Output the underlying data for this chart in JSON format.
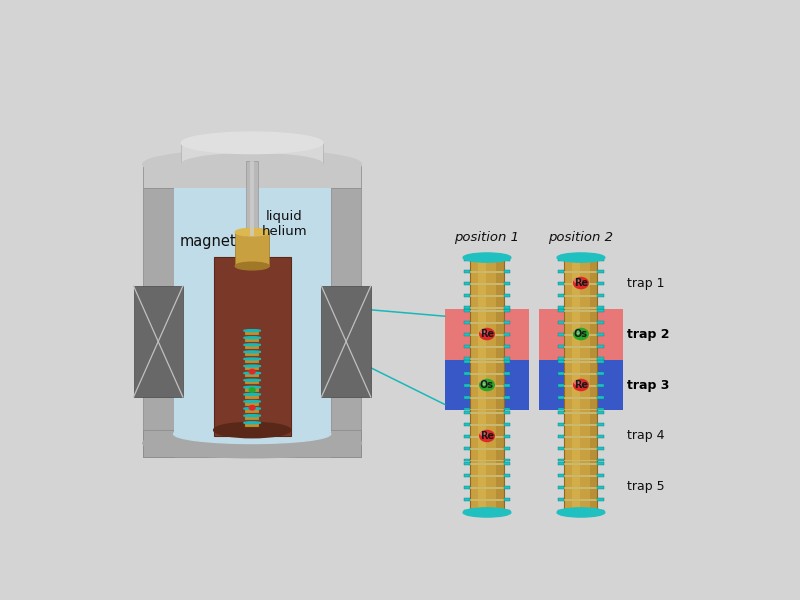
{
  "bg_color": "#d4d4d4",
  "magnet_gray": "#a8a8a8",
  "magnet_gray_dark": "#888888",
  "magnet_gray_light": "#c8c8c8",
  "magnet_inner_light": "#b8d8e0",
  "helium_color": "#c0dce8",
  "inner_vessel_color": "#7a3828",
  "inner_vessel_dark": "#5a2818",
  "gold_color": "#c8a040",
  "gold_light": "#ddb850",
  "gold_dark": "#a07828",
  "tube_color": "#b8b8b8",
  "tube_dark": "#989898",
  "pole_color": "#686868",
  "pole_x_color": "#c0c0c0",
  "trap_gold": "#c8a040",
  "trap_gold_light": "#ddb850",
  "trap_gold_dark": "#906820",
  "trap_ring_color": "#20c0c0",
  "trap_ring_dark": "#008888",
  "trap_sep_color": "#c8b870",
  "trap2_highlight": "#e87878",
  "trap3_highlight": "#3858c8",
  "Re_color": "#e02828",
  "Os_color": "#28a828",
  "ion_text_color": "#181818",
  "label_color": "#101010",
  "bold_label_color": "#000000",
  "arrow_color": "#18b8b8",
  "pos1_label": "position 1",
  "pos2_label": "position 2",
  "magnet_label": "magnet",
  "helium_label": "liquid\nhelium"
}
